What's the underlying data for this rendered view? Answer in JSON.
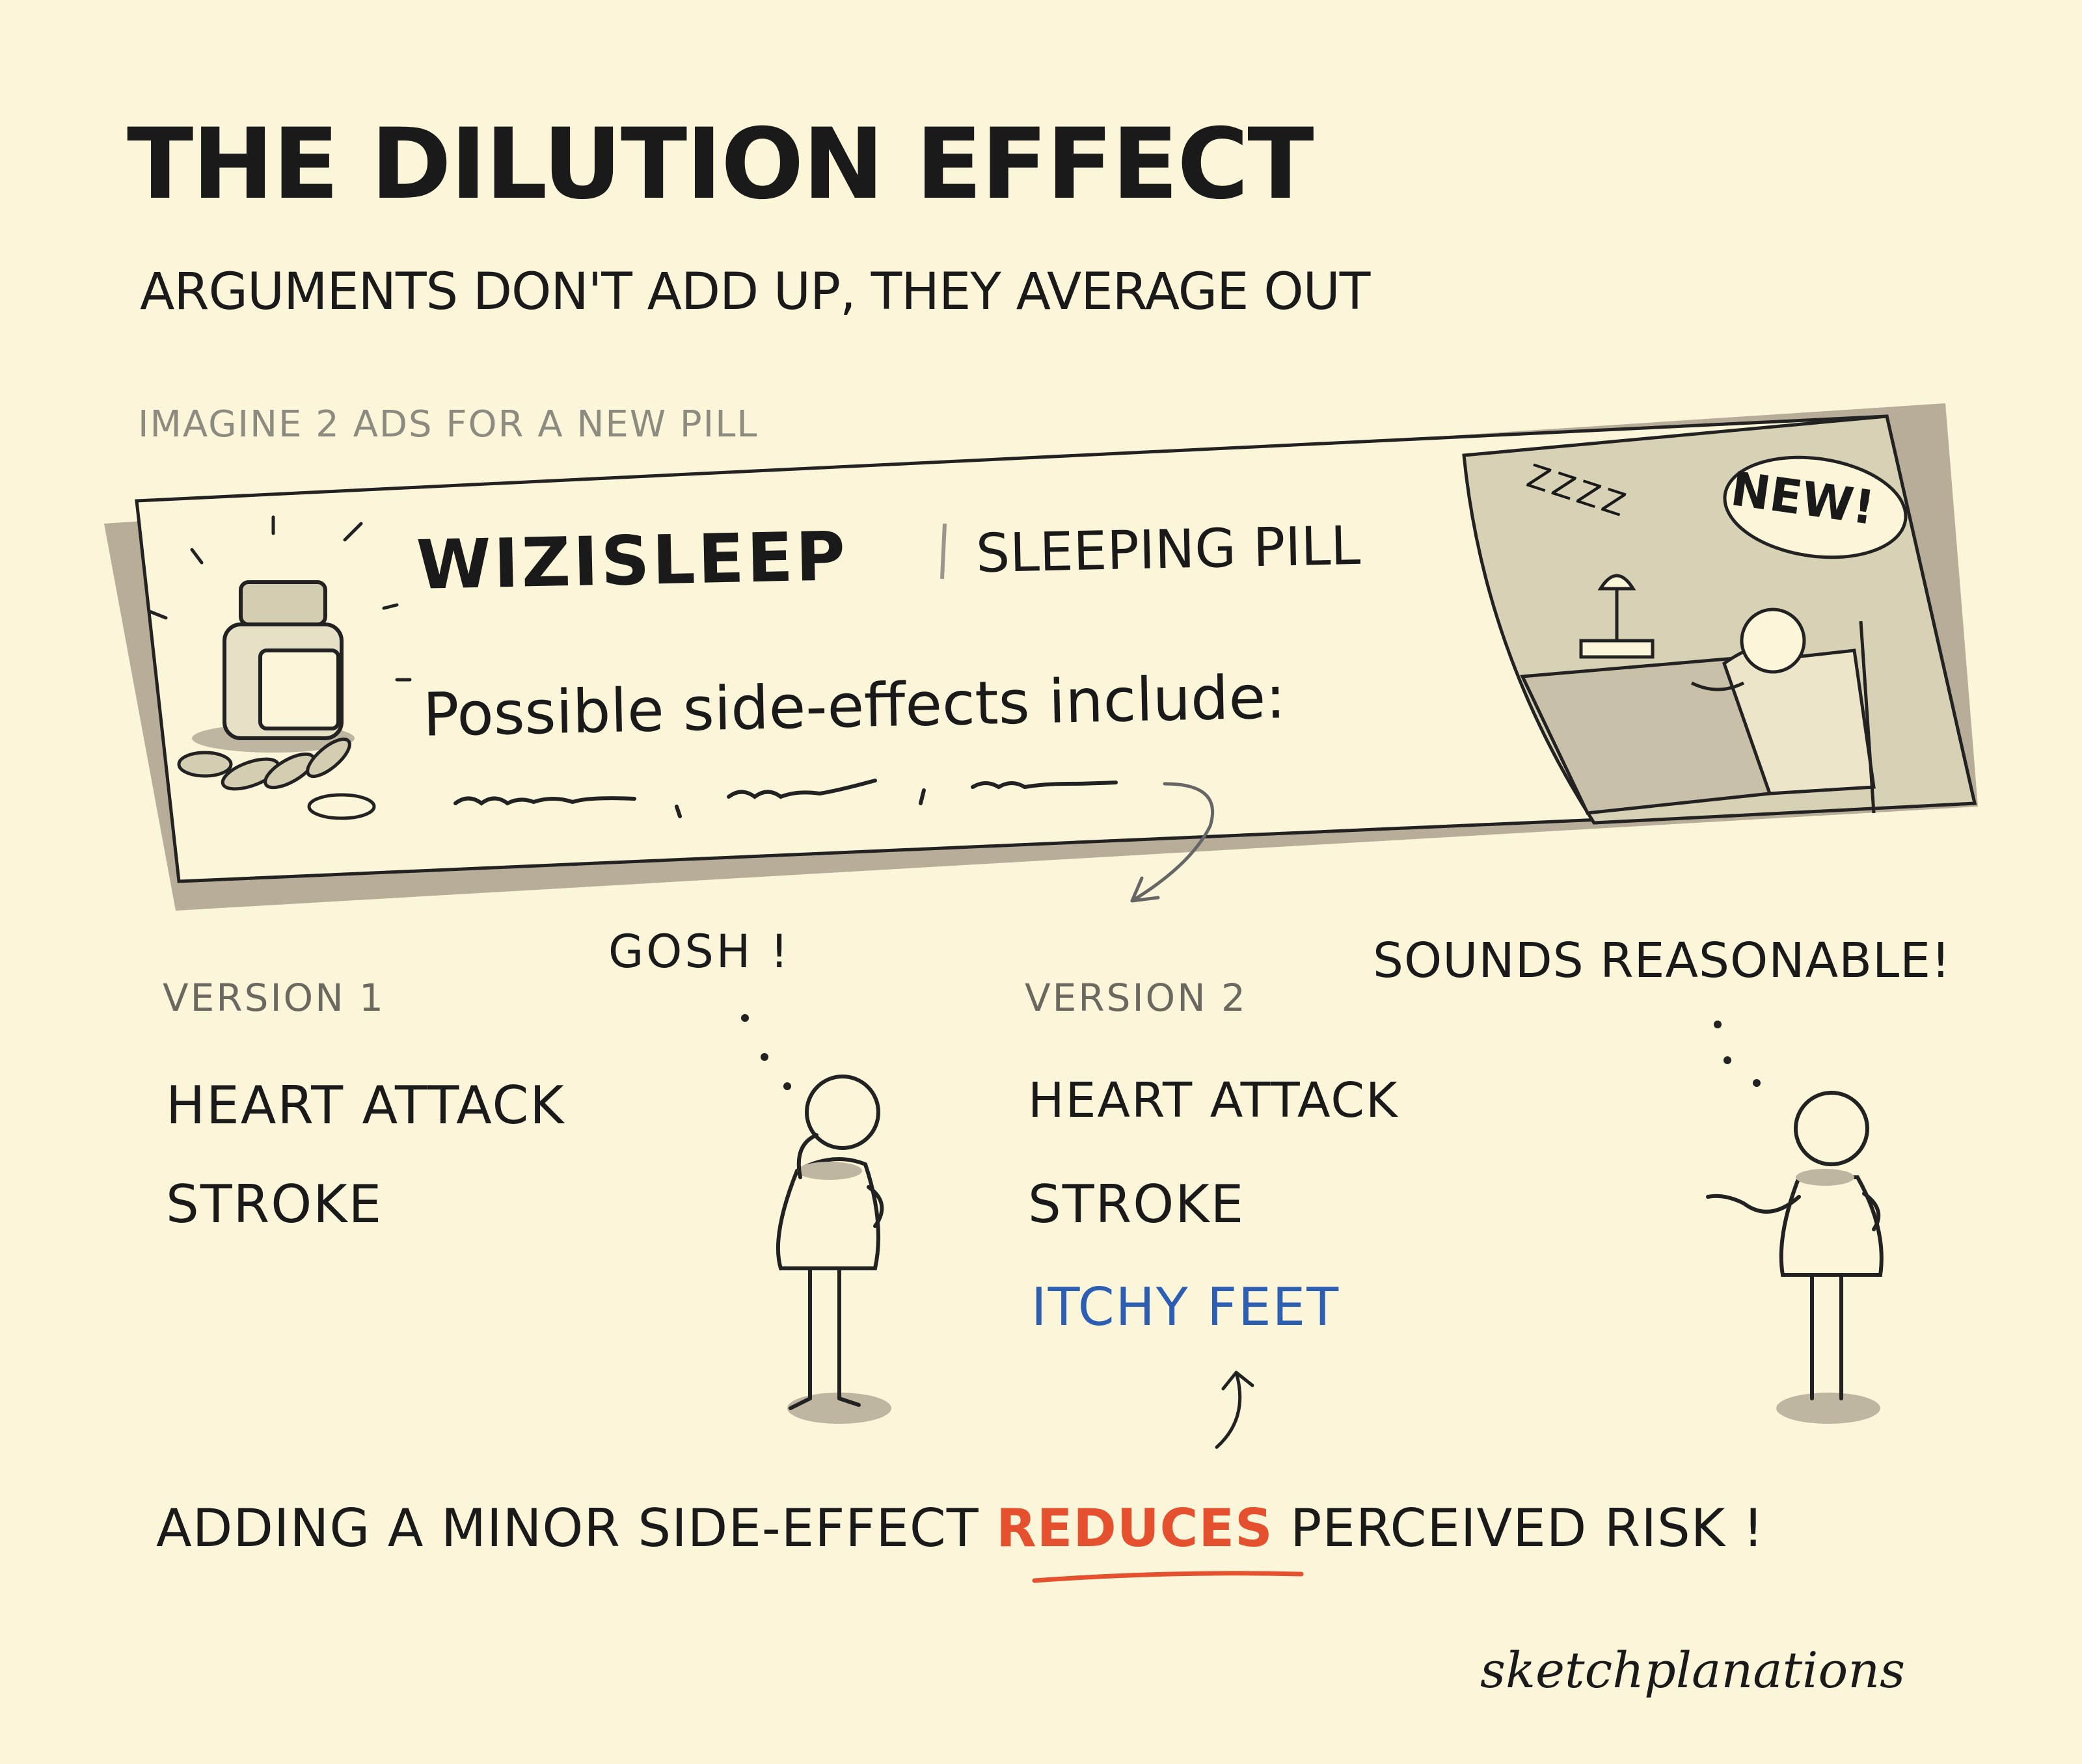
{
  "title": "THE DILUTION EFFECT",
  "subtitle": "ARGUMENTS DON'T ADD UP, THEY AVERAGE OUT",
  "intro": "IMAGINE 2 ADS FOR A NEW PILL",
  "ad": {
    "brand": "WIZISLEEP",
    "product_type": "SLEEPING PILL",
    "side_effects_text": "Possible side-effects include:",
    "badge": "NEW!",
    "sleep_sound": "ZZZZ"
  },
  "version1": {
    "label": "VERSION 1",
    "items": [
      "HEART ATTACK",
      "STROKE"
    ],
    "reaction": "GOSH !"
  },
  "version2": {
    "label": "VERSION 2",
    "items": [
      "HEART ATTACK",
      "STROKE",
      "ITCHY FEET"
    ],
    "reaction": "SOUNDS REASONABLE!"
  },
  "conclusion": {
    "before": "ADDING A MINOR SIDE-EFFECT ",
    "highlight": "REDUCES",
    "after": " PERCEIVED RISK !"
  },
  "credit": "sketchplanations",
  "colors": {
    "background": "#fbf6d9",
    "ad_shadow": "#b7ad99",
    "image_panel": "#d7d2b5",
    "highlight": "#e5512e",
    "minor_item": "#2c5fb3"
  }
}
